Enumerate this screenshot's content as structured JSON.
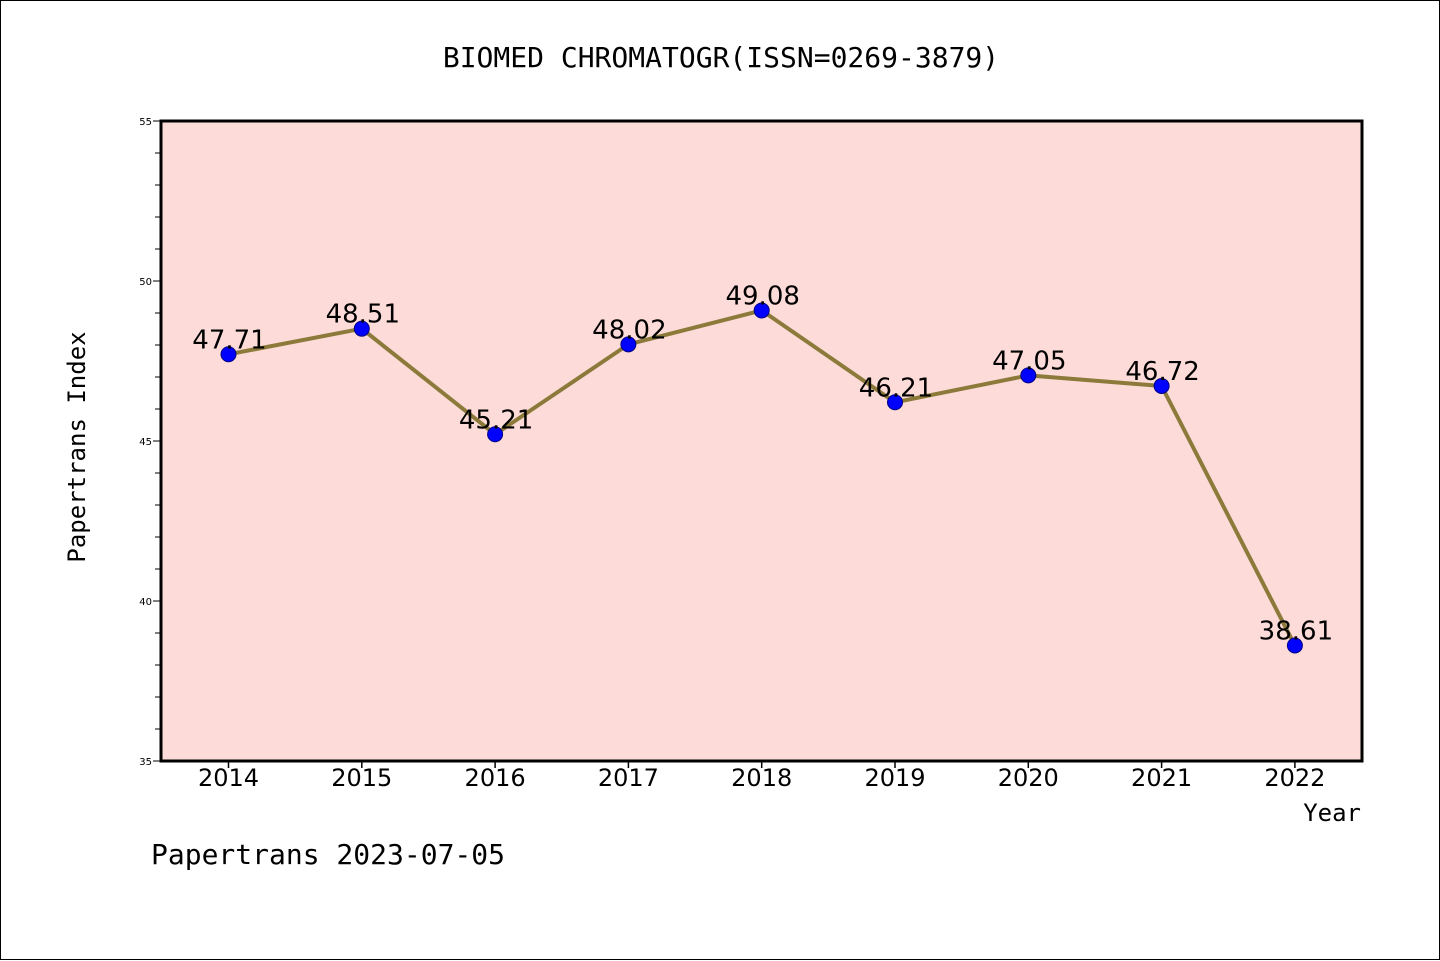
{
  "chart_data": {
    "type": "line",
    "title": "BIOMED CHROMATOGR(ISSN=0269-3879)",
    "xlabel": "Year",
    "ylabel": "Papertrans Index",
    "categories": [
      "2014",
      "2015",
      "2016",
      "2017",
      "2018",
      "2019",
      "2020",
      "2021",
      "2022"
    ],
    "values": [
      47.71,
      48.51,
      45.21,
      48.02,
      49.08,
      46.21,
      47.05,
      46.72,
      38.61
    ],
    "data_labels": [
      "47.71",
      "48.51",
      "45.21",
      "48.02",
      "49.08",
      "46.21",
      "47.05",
      "46.72",
      "38.61"
    ],
    "ylim": [
      35,
      55
    ],
    "yticks": [
      35,
      40,
      45,
      50,
      55
    ],
    "grid": false,
    "legend": "none",
    "colors": {
      "plot_background": "#fddbd8",
      "line": "#8b7a3a",
      "marker": "#0000ff",
      "marker_edge": "#000080"
    }
  },
  "footer": {
    "text": "Papertrans 2023-07-05"
  }
}
